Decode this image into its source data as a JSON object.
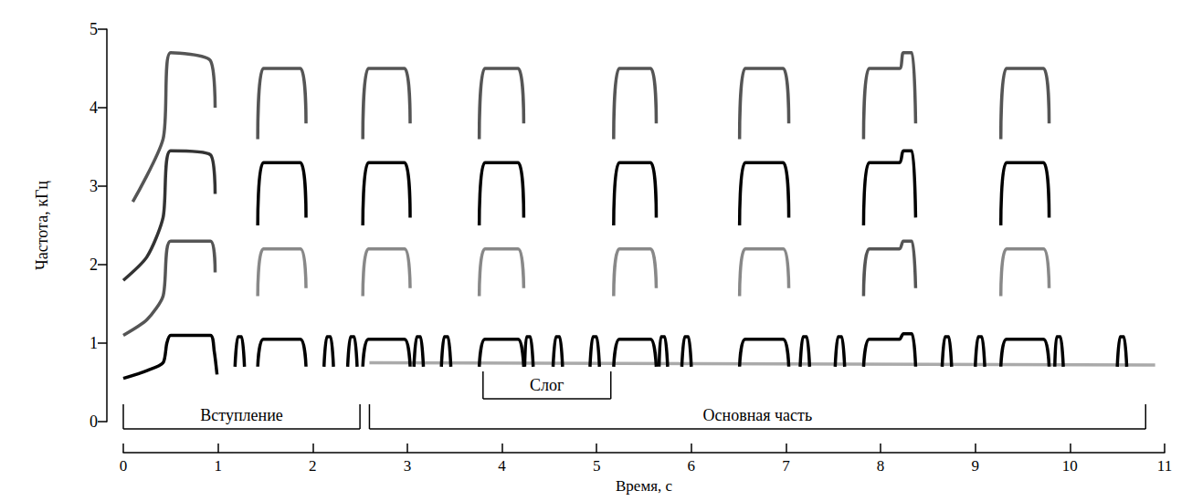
{
  "chart_data": {
    "type": "spectrogram",
    "x_label": "Время, с",
    "y_label": "Частота, кГц",
    "xlim": [
      0,
      11
    ],
    "xticks": [
      0,
      1,
      2,
      3,
      4,
      5,
      6,
      7,
      8,
      9,
      10,
      11
    ],
    "ylim": [
      0,
      5
    ],
    "yticks": [
      0,
      1,
      2,
      3,
      4,
      5
    ],
    "grid": false,
    "brackets": [
      {
        "label": "Вступление",
        "start": 0,
        "end": 2.5
      },
      {
        "label": "Слог",
        "start": 3.8,
        "end": 5.15
      },
      {
        "label": "Основная часть",
        "start": 2.6,
        "end": 10.8
      }
    ],
    "traces": [
      {
        "color": "#aaaaaa",
        "x": [
          2.6,
          10.9
        ],
        "y": [
          0.75,
          0.72
        ]
      },
      {
        "color": "#000000",
        "x": [
          0.0,
          0.25,
          0.42,
          0.46,
          0.5,
          0.92,
          0.96,
          0.99
        ],
        "y": [
          0.55,
          0.65,
          0.75,
          1.0,
          1.1,
          1.1,
          0.9,
          0.6
        ]
      },
      {
        "color": "#555555",
        "x": [
          0.0,
          0.25,
          0.42,
          0.5,
          0.92,
          0.97
        ],
        "y": [
          1.1,
          1.3,
          1.6,
          2.3,
          2.3,
          1.9
        ]
      },
      {
        "color": "#333333",
        "x": [
          0.0,
          0.25,
          0.42,
          0.5,
          0.92,
          0.97
        ],
        "y": [
          1.8,
          2.1,
          2.6,
          3.45,
          3.4,
          2.9
        ]
      },
      {
        "color": "#555555",
        "x": [
          0.1,
          0.42,
          0.5,
          0.92,
          0.97
        ],
        "y": [
          2.8,
          3.6,
          4.7,
          4.6,
          4.0
        ]
      },
      {
        "color": "#000000",
        "x": [
          1.42,
          1.48,
          1.87,
          1.93
        ],
        "y": [
          0.7,
          1.05,
          1.05,
          0.7
        ]
      },
      {
        "color": "#888888",
        "x": [
          1.42,
          1.48,
          1.87,
          1.93
        ],
        "y": [
          1.6,
          2.2,
          2.2,
          1.7
        ]
      },
      {
        "color": "#000000",
        "x": [
          1.42,
          1.48,
          1.87,
          1.93
        ],
        "y": [
          2.5,
          3.3,
          3.3,
          2.6
        ]
      },
      {
        "color": "#555555",
        "x": [
          1.42,
          1.48,
          1.87,
          1.93
        ],
        "y": [
          3.6,
          4.5,
          4.5,
          3.8
        ]
      },
      {
        "color": "#000000",
        "x": [
          2.53,
          2.59,
          2.97,
          3.03
        ],
        "y": [
          0.7,
          1.05,
          1.05,
          0.7
        ]
      },
      {
        "color": "#888888",
        "x": [
          2.53,
          2.59,
          2.97,
          3.03
        ],
        "y": [
          1.6,
          2.2,
          2.2,
          1.7
        ]
      },
      {
        "color": "#000000",
        "x": [
          2.53,
          2.59,
          2.97,
          3.03
        ],
        "y": [
          2.5,
          3.3,
          3.3,
          2.6
        ]
      },
      {
        "color": "#555555",
        "x": [
          2.53,
          2.59,
          2.97,
          3.03
        ],
        "y": [
          3.6,
          4.5,
          4.5,
          3.8
        ]
      },
      {
        "color": "#000000",
        "x": [
          3.76,
          3.82,
          4.17,
          4.23
        ],
        "y": [
          0.7,
          1.05,
          1.05,
          0.7
        ]
      },
      {
        "color": "#888888",
        "x": [
          3.76,
          3.82,
          4.17,
          4.23
        ],
        "y": [
          1.6,
          2.2,
          2.2,
          1.7
        ]
      },
      {
        "color": "#000000",
        "x": [
          3.76,
          3.82,
          4.17,
          4.23
        ],
        "y": [
          2.5,
          3.3,
          3.3,
          2.6
        ]
      },
      {
        "color": "#555555",
        "x": [
          3.76,
          3.82,
          4.17,
          4.23
        ],
        "y": [
          3.6,
          4.5,
          4.5,
          3.8
        ]
      },
      {
        "color": "#000000",
        "x": [
          5.18,
          5.24,
          5.57,
          5.63
        ],
        "y": [
          0.7,
          1.05,
          1.05,
          0.7
        ]
      },
      {
        "color": "#888888",
        "x": [
          5.18,
          5.24,
          5.57,
          5.63
        ],
        "y": [
          1.6,
          2.2,
          2.2,
          1.7
        ]
      },
      {
        "color": "#000000",
        "x": [
          5.18,
          5.24,
          5.57,
          5.63
        ],
        "y": [
          2.5,
          3.3,
          3.3,
          2.6
        ]
      },
      {
        "color": "#555555",
        "x": [
          5.18,
          5.24,
          5.57,
          5.63
        ],
        "y": [
          3.6,
          4.5,
          4.5,
          3.8
        ]
      },
      {
        "color": "#000000",
        "x": [
          6.51,
          6.57,
          6.97,
          7.03
        ],
        "y": [
          0.7,
          1.05,
          1.05,
          0.7
        ]
      },
      {
        "color": "#888888",
        "x": [
          6.51,
          6.57,
          6.97,
          7.03
        ],
        "y": [
          1.6,
          2.2,
          2.2,
          1.7
        ]
      },
      {
        "color": "#000000",
        "x": [
          6.51,
          6.57,
          6.97,
          7.03
        ],
        "y": [
          2.5,
          3.3,
          3.3,
          2.6
        ]
      },
      {
        "color": "#555555",
        "x": [
          6.51,
          6.57,
          6.97,
          7.03
        ],
        "y": [
          3.6,
          4.5,
          4.5,
          3.8
        ]
      },
      {
        "color": "#000000",
        "x": [
          7.82,
          7.88,
          8.2,
          8.24,
          8.33,
          8.37
        ],
        "y": [
          0.7,
          1.05,
          1.05,
          1.12,
          1.12,
          0.7
        ]
      },
      {
        "color": "#555555",
        "x": [
          7.82,
          7.88,
          8.2,
          8.24,
          8.33,
          8.37
        ],
        "y": [
          1.6,
          2.2,
          2.2,
          2.3,
          2.3,
          1.7
        ]
      },
      {
        "color": "#000000",
        "x": [
          7.82,
          7.88,
          8.2,
          8.24,
          8.33,
          8.37
        ],
        "y": [
          2.5,
          3.3,
          3.3,
          3.45,
          3.45,
          2.6
        ]
      },
      {
        "color": "#555555",
        "x": [
          7.82,
          7.88,
          8.2,
          8.24,
          8.33,
          8.37
        ],
        "y": [
          3.6,
          4.5,
          4.5,
          4.7,
          4.7,
          3.8
        ]
      },
      {
        "color": "#000000",
        "x": [
          9.27,
          9.33,
          9.72,
          9.78
        ],
        "y": [
          0.7,
          1.05,
          1.05,
          0.7
        ]
      },
      {
        "color": "#888888",
        "x": [
          9.27,
          9.33,
          9.72,
          9.78
        ],
        "y": [
          1.6,
          2.2,
          2.2,
          1.7
        ]
      },
      {
        "color": "#000000",
        "x": [
          9.27,
          9.33,
          9.72,
          9.78
        ],
        "y": [
          2.5,
          3.3,
          3.3,
          2.6
        ]
      },
      {
        "color": "#555555",
        "x": [
          9.27,
          9.33,
          9.72,
          9.78
        ],
        "y": [
          3.6,
          4.5,
          4.5,
          3.8
        ]
      },
      {
        "color": "#000000",
        "x": [
          1.18,
          1.21,
          1.25,
          1.28
        ],
        "y": [
          0.7,
          1.08,
          1.08,
          0.7
        ]
      },
      {
        "color": "#000000",
        "x": [
          2.12,
          2.15,
          2.19,
          2.22
        ],
        "y": [
          0.7,
          1.08,
          1.08,
          0.7
        ]
      },
      {
        "color": "#000000",
        "x": [
          2.37,
          2.4,
          2.44,
          2.47
        ],
        "y": [
          0.7,
          1.08,
          1.08,
          0.7
        ]
      },
      {
        "color": "#000000",
        "x": [
          3.07,
          3.1,
          3.14,
          3.17
        ],
        "y": [
          0.7,
          1.08,
          1.08,
          0.7
        ]
      },
      {
        "color": "#000000",
        "x": [
          3.36,
          3.39,
          3.43,
          3.46
        ],
        "y": [
          0.7,
          1.08,
          1.08,
          0.7
        ]
      },
      {
        "color": "#000000",
        "x": [
          4.24,
          4.26,
          4.3,
          4.33
        ],
        "y": [
          0.7,
          1.08,
          1.08,
          0.7
        ]
      },
      {
        "color": "#000000",
        "x": [
          4.54,
          4.57,
          4.61,
          4.64
        ],
        "y": [
          0.7,
          1.08,
          1.08,
          0.7
        ]
      },
      {
        "color": "#000000",
        "x": [
          4.93,
          4.96,
          5.0,
          5.03
        ],
        "y": [
          0.7,
          1.08,
          1.08,
          0.7
        ]
      },
      {
        "color": "#000000",
        "x": [
          5.66,
          5.68,
          5.72,
          5.75
        ],
        "y": [
          0.7,
          1.08,
          1.08,
          0.7
        ]
      },
      {
        "color": "#000000",
        "x": [
          5.9,
          5.93,
          5.97,
          6.0
        ],
        "y": [
          0.7,
          1.08,
          1.08,
          0.7
        ]
      },
      {
        "color": "#000000",
        "x": [
          7.15,
          7.18,
          7.22,
          7.25
        ],
        "y": [
          0.7,
          1.08,
          1.08,
          0.7
        ]
      },
      {
        "color": "#000000",
        "x": [
          7.52,
          7.55,
          7.59,
          7.62
        ],
        "y": [
          0.7,
          1.08,
          1.08,
          0.7
        ]
      },
      {
        "color": "#000000",
        "x": [
          8.65,
          8.68,
          8.72,
          8.75
        ],
        "y": [
          0.7,
          1.08,
          1.08,
          0.7
        ]
      },
      {
        "color": "#000000",
        "x": [
          9.0,
          9.03,
          9.07,
          9.1
        ],
        "y": [
          0.7,
          1.08,
          1.08,
          0.7
        ]
      },
      {
        "color": "#000000",
        "x": [
          9.84,
          9.86,
          9.9,
          9.93
        ],
        "y": [
          0.7,
          1.08,
          1.08,
          0.7
        ]
      },
      {
        "color": "#000000",
        "x": [
          10.5,
          10.53,
          10.57,
          10.6
        ],
        "y": [
          0.7,
          1.08,
          1.08,
          0.7
        ]
      }
    ]
  }
}
